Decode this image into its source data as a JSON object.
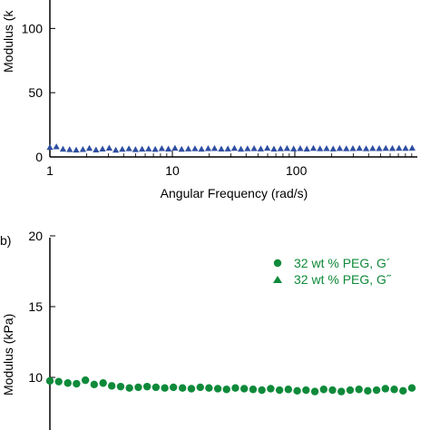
{
  "chart_data": [
    {
      "type": "scatter",
      "panel": "a",
      "xscale": "log",
      "xlim": [
        1,
        1000
      ],
      "ylim": [
        0,
        120
      ],
      "xlabel": "Angular Frequency (rad/s)",
      "ylabel": "Modulus (k",
      "xticks": [
        "1",
        "10",
        "100"
      ],
      "yticks": [
        "0",
        "50",
        "100"
      ],
      "series": [
        {
          "marker": "triangle",
          "color": "#2e4ea1",
          "x": [
            1.0,
            1.13,
            1.28,
            1.45,
            1.64,
            1.86,
            2.1,
            2.38,
            2.69,
            3.05,
            3.45,
            3.9,
            4.42,
            5.0,
            5.66,
            6.4,
            7.25,
            8.2,
            9.28,
            10.5,
            11.9,
            13.5,
            15.3,
            17.3,
            19.6,
            22.1,
            25.1,
            28.4,
            32.1,
            36.3,
            41.1,
            46.5,
            52.7,
            59.6,
            67.5,
            76.4,
            86.4,
            97.8,
            110.7,
            125.3,
            141.8,
            160.5,
            181.6,
            205.6,
            232.6,
            263.3,
            298,
            337,
            382,
            432,
            489,
            553,
            626,
            709,
            802,
            908
          ],
          "y": [
            7.5,
            8.0,
            6.2,
            5.8,
            5.5,
            5.9,
            6.8,
            5.6,
            6.3,
            7.0,
            5.4,
            6.1,
            6.5,
            5.8,
            6.2,
            6.4,
            6.0,
            6.6,
            6.3,
            6.9,
            6.1,
            6.4,
            6.5,
            6.2,
            6.6,
            6.7,
            6.3,
            6.4,
            6.8,
            6.2,
            6.5,
            6.6,
            6.4,
            6.9,
            6.3,
            6.5,
            6.7,
            6.4,
            6.6,
            6.3,
            6.8,
            6.5,
            6.6,
            6.4,
            6.7,
            6.5,
            6.6,
            6.8,
            6.5,
            6.7,
            6.6,
            6.8,
            6.7,
            6.9,
            6.8,
            7.0
          ]
        }
      ]
    },
    {
      "type": "scatter",
      "panel": "b",
      "panel_label": "b)",
      "xscale": "log",
      "xlim": [
        1,
        1000
      ],
      "ylim": [
        5,
        20
      ],
      "ylabel": "Modulus (kPa)",
      "yticks": [
        "10",
        "15",
        "20"
      ],
      "legend_position": "top-right",
      "series": [
        {
          "name": "32 wt % PEG, G´",
          "marker": "circle",
          "color": "#0f8a3a",
          "x": [
            1.0,
            1.18,
            1.4,
            1.65,
            1.95,
            2.3,
            2.72,
            3.2,
            3.78,
            4.46,
            5.27,
            6.22,
            7.34,
            8.67,
            10.2,
            12.1,
            14.3,
            16.9,
            19.9,
            23.5,
            27.7,
            32.7,
            38.6,
            45.6,
            53.8,
            63.5,
            75,
            88.5,
            104.5,
            123.4,
            145.7,
            172,
            203,
            239.7,
            283,
            334,
            394,
            465,
            549,
            648,
            765,
            903
          ],
          "y": [
            9.75,
            9.7,
            9.6,
            9.55,
            9.8,
            9.5,
            9.6,
            9.4,
            9.35,
            9.25,
            9.3,
            9.35,
            9.3,
            9.25,
            9.3,
            9.25,
            9.2,
            9.3,
            9.25,
            9.2,
            9.15,
            9.25,
            9.2,
            9.15,
            9.1,
            9.2,
            9.1,
            9.15,
            9.05,
            9.1,
            9.0,
            9.15,
            9.1,
            9.0,
            9.1,
            9.15,
            9.05,
            9.1,
            9.2,
            9.15,
            9.05,
            9.25
          ]
        },
        {
          "name": "32 wt % PEG, G˝",
          "marker": "triangle",
          "color": "#0f8a3a",
          "x": [],
          "y": []
        }
      ]
    }
  ]
}
